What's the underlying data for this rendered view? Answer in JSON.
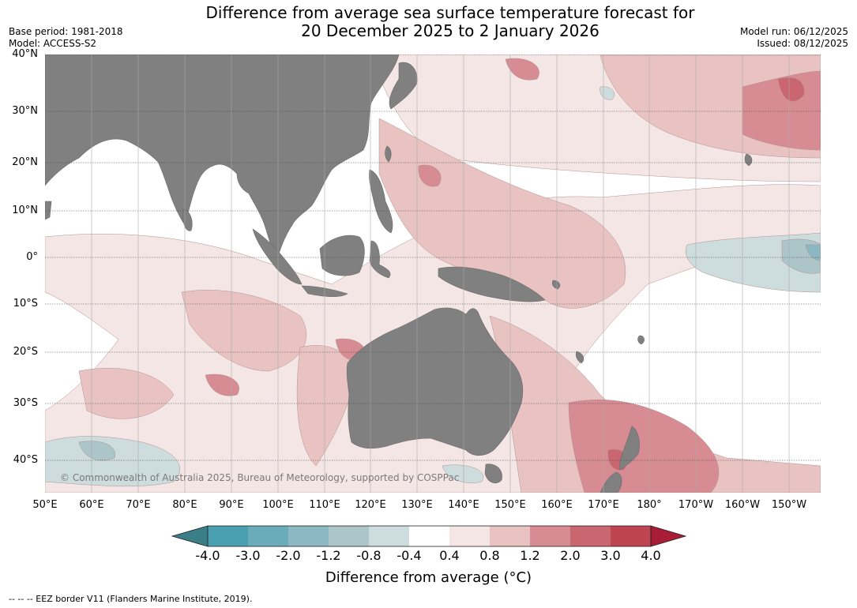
{
  "title": {
    "line1": "Difference from average sea surface temperature forecast for",
    "line2": "20 December 2025 to 2 January 2026"
  },
  "meta": {
    "base_period": "Base period: 1981-2018",
    "model": "Model: ACCESS-S2",
    "model_run": "Model run: 06/12/2025",
    "issued": "Issued: 08/12/2025"
  },
  "map": {
    "lat_labels": [
      "40°N",
      "30°N",
      "20°N",
      "10°N",
      "0°",
      "10°S",
      "20°S",
      "30°S",
      "40°S"
    ],
    "lon_labels": [
      "50°E",
      "60°E",
      "70°E",
      "80°E",
      "90°E",
      "100°E",
      "110°E",
      "120°E",
      "130°E",
      "140°E",
      "150°E",
      "160°E",
      "170°E",
      "180°",
      "170°W",
      "160°W",
      "150°W"
    ],
    "copyright": "© Commonwealth of Australia 2025, Bureau of Meteorology, supported by COSPPac",
    "land_color": "#808080",
    "ocean_base_color": "#ffffff"
  },
  "colorbar": {
    "label": "Difference from average (°C)",
    "ticks": [
      "-4.0",
      "-3.0",
      "-2.0",
      "-1.2",
      "-0.8",
      "-0.4",
      "0.4",
      "0.8",
      "1.2",
      "2.0",
      "3.0",
      "4.0"
    ],
    "colors": {
      "under": "#3a7f88",
      "bins": [
        "#4a9fb1",
        "#6aacba",
        "#8cb8c4",
        "#abc5c9",
        "#cddcdd",
        "#ffffff",
        "#f5e6e6",
        "#e8c3c1",
        "#d68c92",
        "#c9666f",
        "#be4450"
      ],
      "over": "#a91c35"
    }
  },
  "footer": {
    "eez_note": "--  --  -- EEZ border V11 (Flanders Marine Institute, 2019)."
  }
}
